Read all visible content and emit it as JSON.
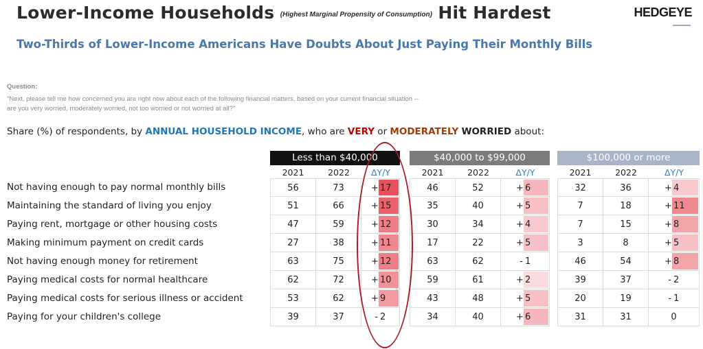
{
  "header": {
    "title_main": "Lower-Income Households",
    "title_note": "(Highest Marginal Propensity of Consumption)",
    "title_end": "Hit Hardest",
    "logo": "HEDGEYE",
    "subtitle": "Two-Thirds of Lower-Income Americans Have Doubts About Just Paying Their Monthly Bills"
  },
  "question": {
    "label": "Question:",
    "text": "\"Next, please tell me how concerned you are right now about each of the following financial matters, based on your current financial situation -- are you very worried, moderately worried, not too worried or not worried at all?\""
  },
  "share_line": {
    "prefix": "Share (%) of respondents, by ",
    "income": "ANNUAL HOUSEHOLD INCOME",
    "mid1": ", who are ",
    "very": "VERY",
    "mid2": " or ",
    "moderately": "MODERATELY",
    "space": " ",
    "worried": "WORRIED",
    "suffix": " about:"
  },
  "colors": {
    "group_headers": [
      "#111111",
      "#7b7b7b",
      "#a9b5c6"
    ],
    "delta_heat_max": "#e8505a",
    "delta_heat_min": "#fdeef0",
    "delta_header": "#2f7fc2",
    "ellipse": "#a81e2b"
  },
  "chart_data": {
    "type": "table",
    "groups": [
      "Less than $40,000",
      "$40,000 to $99,000",
      "$100,000 or more"
    ],
    "columns": [
      "2021",
      "2022",
      "ΔY/Y"
    ],
    "rows": [
      {
        "label": "Not having enough to pay normal monthly bills",
        "values": [
          [
            56,
            73,
            17
          ],
          [
            46,
            52,
            6
          ],
          [
            32,
            36,
            4
          ]
        ]
      },
      {
        "label": "Maintaining the standard of living you enjoy",
        "values": [
          [
            51,
            66,
            15
          ],
          [
            35,
            40,
            5
          ],
          [
            7,
            18,
            11
          ]
        ]
      },
      {
        "label": "Paying rent, mortgage or other housing costs",
        "values": [
          [
            47,
            59,
            12
          ],
          [
            30,
            34,
            4
          ],
          [
            7,
            15,
            8
          ]
        ]
      },
      {
        "label": "Making minimum payment on credit cards",
        "values": [
          [
            27,
            38,
            11
          ],
          [
            17,
            22,
            5
          ],
          [
            3,
            8,
            5
          ]
        ]
      },
      {
        "label": "Not having enough money for retirement",
        "values": [
          [
            63,
            75,
            12
          ],
          [
            63,
            62,
            -1
          ],
          [
            46,
            54,
            8
          ]
        ]
      },
      {
        "label": "Paying medical costs for normal healthcare",
        "values": [
          [
            62,
            72,
            10
          ],
          [
            59,
            61,
            2
          ],
          [
            39,
            37,
            -2
          ]
        ]
      },
      {
        "label": "Paying medical costs for serious illness or accident",
        "values": [
          [
            53,
            62,
            9
          ],
          [
            43,
            48,
            5
          ],
          [
            20,
            19,
            -1
          ]
        ]
      },
      {
        "label": "Paying for your children's college",
        "values": [
          [
            39,
            37,
            -2
          ],
          [
            34,
            40,
            6
          ],
          [
            31,
            31,
            0
          ]
        ]
      }
    ]
  }
}
